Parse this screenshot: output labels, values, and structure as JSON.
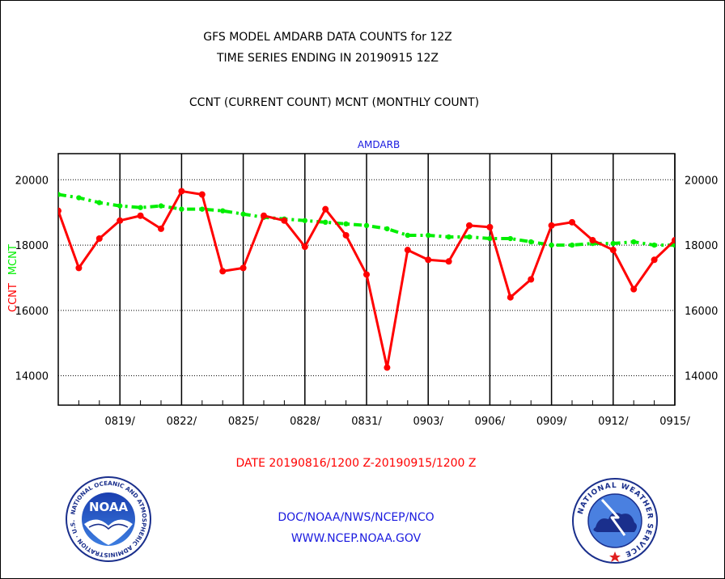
{
  "header": {
    "line1": "GFS MODEL AMDARB DATA COUNTS for 12Z",
    "line2": "TIME SERIES ENDING IN 20190915 12Z",
    "line3": "CCNT (CURRENT COUNT) MCNT (MONTHLY COUNT)"
  },
  "footer": {
    "date_range": "DATE 20190816/1200 Z-20190915/1200 Z",
    "org": "DOC/NOAA/NWS/NCEP/NCO",
    "url": "WWW.NCEP.NOAA.GOV"
  },
  "logos": {
    "left": {
      "center_text": "NOAA",
      "ring_text": "NATIONAL OCEANIC AND ATMOSPHERIC ADMINISTRATION · U.S. DEPARTMENT OF COMMERCE"
    },
    "right": {
      "ring_text": "NATIONAL WEATHER SERVICE"
    }
  },
  "chart_data": {
    "type": "line",
    "title": "AMDARB",
    "ylabel_left_1": "CCNT",
    "ylabel_left_2": "MCNT",
    "ylim": [
      13100,
      20800
    ],
    "yticks": [
      14000,
      16000,
      18000,
      20000
    ],
    "y_tick_labels": [
      "14000",
      "16000",
      "18000",
      "20000"
    ],
    "x": [
      "0816",
      "0817",
      "0818",
      "0819",
      "0820",
      "0821",
      "0822",
      "0823",
      "0824",
      "0825",
      "0826",
      "0827",
      "0828",
      "0829",
      "0830",
      "0831",
      "0901",
      "0902",
      "0903",
      "0904",
      "0905",
      "0906",
      "0907",
      "0908",
      "0909",
      "0910",
      "0911",
      "0912",
      "0913",
      "0914",
      "0915"
    ],
    "x_tick_labels": [
      "0819/",
      "0822/",
      "0825/",
      "0828/",
      "0831/",
      "0903/",
      "0906/",
      "0909/",
      "0912/",
      "0915/"
    ],
    "x_tick_positions": [
      3,
      6,
      9,
      12,
      15,
      18,
      21,
      24,
      27,
      30
    ],
    "grid": true,
    "colors": {
      "ccnt": "#ff0000",
      "mcnt": "#00ee00",
      "title": "#1a1adf",
      "axis": "#000000"
    },
    "series": [
      {
        "name": "CCNT",
        "style": "solid-dots",
        "values": [
          19050,
          17300,
          18200,
          18750,
          18900,
          18500,
          19650,
          19550,
          17200,
          17300,
          18900,
          18750,
          17950,
          19100,
          18300,
          17100,
          14250,
          17850,
          17550,
          17500,
          18600,
          18550,
          16400,
          16950,
          18600,
          18700,
          18150,
          17850,
          16650,
          17550,
          18150
        ]
      },
      {
        "name": "MCNT",
        "style": "dash-dot",
        "values": [
          19550,
          19450,
          19300,
          19200,
          19150,
          19200,
          19100,
          19100,
          19050,
          18950,
          18850,
          18800,
          18750,
          18700,
          18650,
          18600,
          18500,
          18300,
          18300,
          18250,
          18250,
          18200,
          18200,
          18100,
          18000,
          18000,
          18050,
          18050,
          18100,
          18000,
          18000
        ]
      }
    ]
  }
}
